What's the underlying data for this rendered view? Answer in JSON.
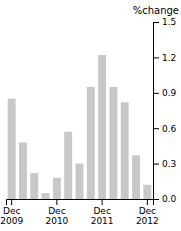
{
  "chart_data": {
    "type": "bar",
    "y_label": "%change",
    "categories": [
      "Dec\n2009",
      null,
      null,
      null,
      "Dec\n2010",
      null,
      null,
      null,
      "Dec\n2011",
      null,
      null,
      null,
      "Dec\n2012"
    ],
    "values": [
      0.85,
      0.48,
      0.22,
      0.05,
      0.18,
      0.57,
      0.3,
      0.95,
      1.22,
      0.95,
      0.82,
      0.37,
      0.12
    ],
    "color": "#c8c8c8",
    "ylim": [
      0,
      1.5
    ],
    "yticks": [
      {
        "value": 0,
        "label": "0.0"
      },
      0.3,
      0.6,
      0.9,
      1.2,
      1.5
    ],
    "grid": false
  }
}
